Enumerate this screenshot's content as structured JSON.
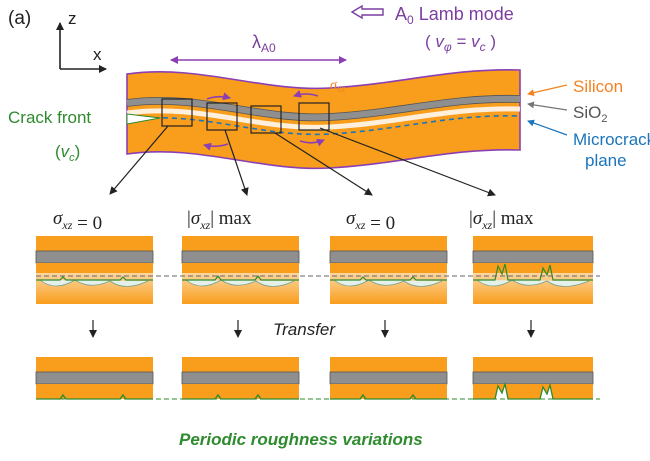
{
  "panel_label": "(a)",
  "axes": {
    "z": "z",
    "x": "x"
  },
  "wave": {
    "wavelength_symbol": "λ",
    "wavelength_sub": "A0",
    "stress_symbol": "σ",
    "stress_sub": "xz"
  },
  "mode": {
    "line1_A": "A",
    "line1_sub": "0",
    "line1_rest": " Lamb mode",
    "line2_open": "( ",
    "line2_v1": "v",
    "line2_phi": "φ",
    "line2_eq": " = ",
    "line2_v2": "v",
    "line2_c": "c",
    "line2_close": " )"
  },
  "labels": {
    "silicon": "Silicon",
    "sio2_main": "SiO",
    "sio2_sub": "2",
    "microcracks_1": "Microcracks",
    "microcracks_2": "plane",
    "crack_front": "Crack front",
    "crack_v_open": "(",
    "crack_v": "v",
    "crack_c": "c",
    "crack_v_close": ")"
  },
  "columns": [
    {
      "abs_open": "",
      "sigma": "σ",
      "sub": "xz",
      "abs_close": "",
      "value": " = 0"
    },
    {
      "abs_open": "|",
      "sigma": "σ",
      "sub": "xz",
      "abs_close": "|",
      "value": " max"
    },
    {
      "abs_open": "",
      "sigma": "σ",
      "sub": "xz",
      "abs_close": "",
      "value": " = 0"
    },
    {
      "abs_open": "|",
      "sigma": "σ",
      "sub": "xz",
      "abs_close": "|",
      "value": " max"
    }
  ],
  "transfer_label": "Transfer",
  "caption": "Periodic roughness variations",
  "colors": {
    "silicon": "#f99d1c",
    "oxide": "#8f8f8f",
    "wave_outline": "#8b3fb3",
    "microcrack_line": "#1b75bc",
    "green": "#2e8b2e",
    "orange_label": "#f58220",
    "purple_label": "#7b3fa0"
  }
}
